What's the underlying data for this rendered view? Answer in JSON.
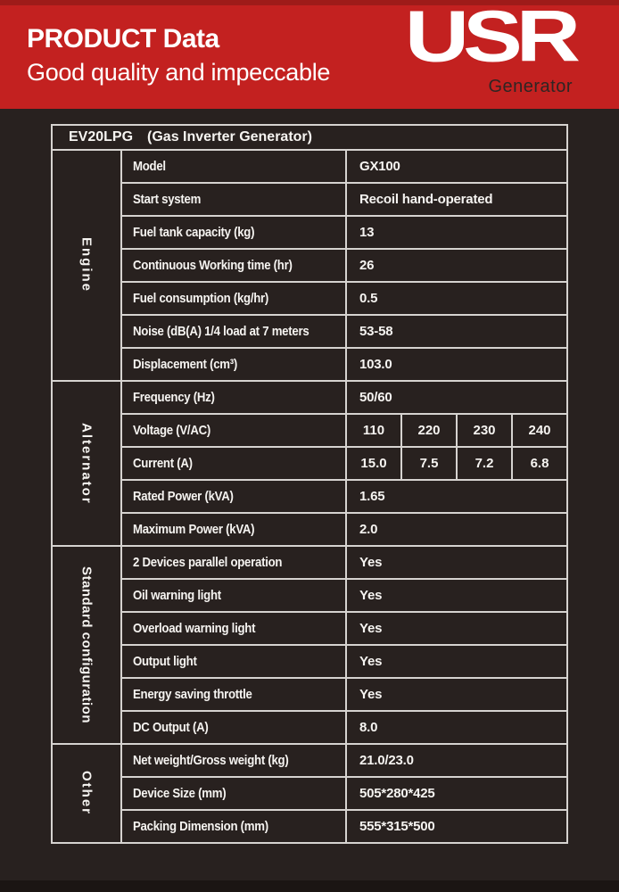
{
  "banner": {
    "title": "PRODUCT Data",
    "subtitle": "Good quality and impeccable",
    "logo_text": "USR",
    "logo_subtext": "Generator"
  },
  "table": {
    "title_model": "EV20LPG",
    "title_note": "(Gas Inverter Generator)",
    "sections": [
      {
        "category": "Engine",
        "rows": [
          {
            "label": "Model",
            "value": "GX100"
          },
          {
            "label": "Start system",
            "value": "Recoil hand-operated"
          },
          {
            "label": "Fuel tank capacity (kg)",
            "value": "13"
          },
          {
            "label": "Continuous Working time (hr)",
            "value": "26"
          },
          {
            "label": "Fuel consumption (kg/hr)",
            "value": "0.5"
          },
          {
            "label": "Noise (dB(A) 1/4 load at 7 meters",
            "value": "53-58"
          },
          {
            "label": "Displacement (cm³)",
            "value": "103.0"
          }
        ]
      },
      {
        "category": "Alternator",
        "rows": [
          {
            "label": "Frequency (Hz)",
            "value": "50/60"
          },
          {
            "label": "Voltage (V/AC)",
            "values": [
              "110",
              "220",
              "230",
              "240"
            ]
          },
          {
            "label": "Current (A)",
            "values": [
              "15.0",
              "7.5",
              "7.2",
              "6.8"
            ]
          },
          {
            "label": "Rated Power (kVA)",
            "value": "1.65"
          },
          {
            "label": "Maximum Power (kVA)",
            "value": "2.0"
          }
        ]
      },
      {
        "category": "Standard configuration",
        "rows": [
          {
            "label": "2  Devices parallel operation",
            "value": "Yes"
          },
          {
            "label": "Oil warning light",
            "value": "Yes"
          },
          {
            "label": "Overload warning light",
            "value": "Yes"
          },
          {
            "label": "Output light",
            "value": "Yes"
          },
          {
            "label": "Energy saving throttle",
            "value": "Yes"
          },
          {
            "label": "DC Output (A)",
            "value": "8.0"
          }
        ]
      },
      {
        "category": "Other",
        "rows": [
          {
            "label": "Net weight/Gross weight (kg)",
            "value": "21.0/23.0"
          },
          {
            "label": "Device Size (mm)",
            "value": "505*280*425"
          },
          {
            "label": "Packing Dimension (mm)",
            "value": "555*315*500"
          }
        ]
      }
    ]
  },
  "colors": {
    "banner_red": "#c32120",
    "banner_red_dark": "#9e1b19",
    "page_bg": "#28211f",
    "table_border": "#d6d3d0",
    "text_light": "#f6f4f1",
    "logo_subtext_color": "#2e2523"
  }
}
